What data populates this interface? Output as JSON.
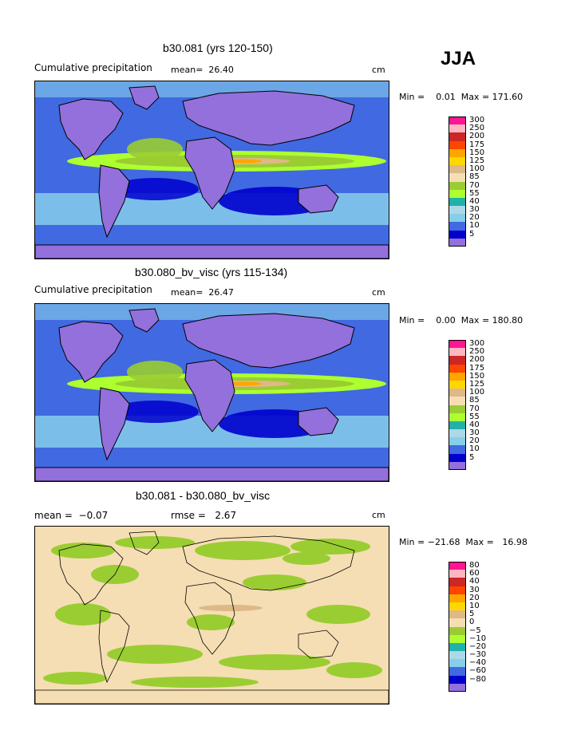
{
  "season": "JJA",
  "units": "cm",
  "panels": [
    {
      "title": "b30.081 (yrs 120-150)",
      "subtitle": "Cumulative precipitation",
      "stat_text": "mean=  26.40",
      "minmax_text": "Min =    0.01  Max = 171.60",
      "legend": [
        "300",
        "250",
        "200",
        "175",
        "150",
        "125",
        "100",
        "85",
        "70",
        "55",
        "40",
        "30",
        "20",
        "10",
        "5"
      ],
      "palette": "precip"
    },
    {
      "title": "b30.080_bv_visc (yrs 115-134)",
      "subtitle": "Cumulative precipitation",
      "stat_text": "mean=  26.47",
      "minmax_text": "Min =    0.00  Max = 180.80",
      "legend": [
        "300",
        "250",
        "200",
        "175",
        "150",
        "125",
        "100",
        "85",
        "70",
        "55",
        "40",
        "30",
        "20",
        "10",
        "5"
      ],
      "palette": "precip"
    },
    {
      "title": "b30.081 - b30.080_bv_visc",
      "subtitle": "mean =  −0.07",
      "stat_text": "rmse =   2.67",
      "minmax_text": "Min = −21.68  Max =   16.98",
      "legend": [
        "80",
        "60",
        "40",
        "30",
        "20",
        "10",
        "5",
        "0",
        "−5",
        "−10",
        "−20",
        "−30",
        "−40",
        "−60",
        "−80"
      ],
      "palette": "diff"
    }
  ],
  "palette_colors": [
    "#ff1493",
    "#ffb6c1",
    "#cd2626",
    "#ff4500",
    "#ffa500",
    "#ffd700",
    "#deb887",
    "#f5deb3",
    "#9acd32",
    "#adff2f",
    "#20b2aa",
    "#add8e6",
    "#87ceeb",
    "#4169e1",
    "#0000cd",
    "#9370db"
  ],
  "map_colors": {
    "land": "#9370db",
    "wet_bg": "#4169e1",
    "ocean_mid": "#87ceeb",
    "ocean_dark": "#0000cd",
    "tropics_green": "#9acd32",
    "tropics_lime": "#adff2f",
    "tropics_tan": "#deb887",
    "tropics_orange": "#ffa500",
    "diff_bg": "#f5deb3",
    "diff_green": "#9acd32",
    "diff_tan": "#deb887",
    "coast": "#000000"
  }
}
